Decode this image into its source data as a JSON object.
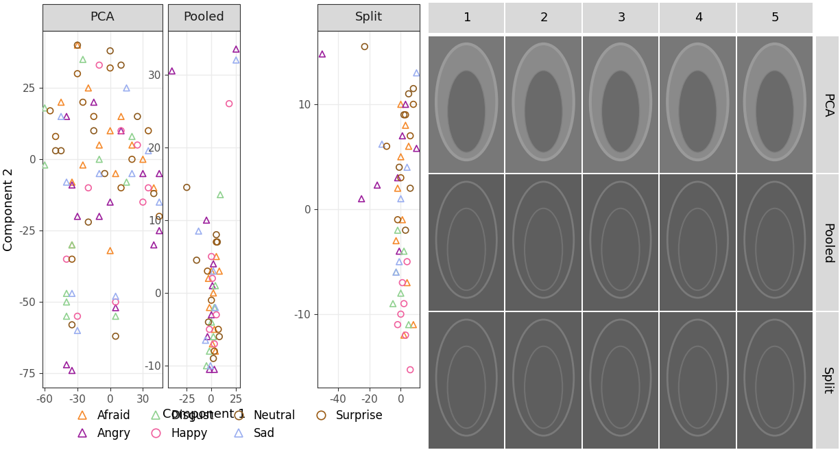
{
  "chart_data": [
    {
      "type": "scatter",
      "title": "PCA",
      "y_label": "Component 2",
      "legend": "lower center",
      "grid": true,
      "xlim": [
        -62,
        48
      ],
      "xticks": [
        -60,
        -30,
        0,
        30
      ],
      "ylim": [
        -80,
        45
      ],
      "yticks": [
        -75,
        -50,
        -25,
        0,
        25
      ],
      "series": [
        {
          "name": "Afraid",
          "color": "#f58a2c",
          "marker": "triangle",
          "x": [
            -30,
            -45,
            -20,
            0,
            10,
            20,
            30,
            -35,
            -35,
            0,
            5,
            -10,
            40,
            -25
          ],
          "y": [
            40,
            20,
            25,
            10,
            15,
            5,
            0,
            -8,
            -30,
            -32,
            -5,
            5,
            -10,
            -2
          ]
        },
        {
          "name": "Angry",
          "color": "#9c1f9c",
          "marker": "triangle",
          "x": [
            -40,
            -35,
            -30,
            -10,
            5,
            40,
            45,
            -40,
            10,
            30,
            -15,
            0,
            45,
            -35
          ],
          "y": [
            -72,
            -74,
            -20,
            -20,
            -52,
            -30,
            -25,
            15,
            10,
            -5,
            20,
            -15,
            -5,
            -9
          ]
        },
        {
          "name": "Disgust",
          "color": "#8fd18f",
          "marker": "triangle",
          "x": [
            -60,
            -60,
            -40,
            -40,
            -35,
            5,
            -10,
            15,
            -25,
            20,
            -40
          ],
          "y": [
            18,
            -2,
            -50,
            -55,
            -30,
            -55,
            0,
            -8,
            35,
            8,
            -47
          ]
        },
        {
          "name": "Happy",
          "color": "#f0609e",
          "marker": "circle",
          "x": [
            -10,
            30,
            5,
            -20,
            10,
            -30,
            25,
            35,
            -40
          ],
          "y": [
            33,
            -15,
            -50,
            -10,
            10,
            -55,
            5,
            -10,
            -35
          ]
        },
        {
          "name": "Neutral",
          "color": "#8c5a1e",
          "marker": "circle",
          "x": [
            -30,
            0,
            5,
            -35,
            -50,
            -45,
            10,
            25,
            -20,
            40,
            -15,
            -5
          ],
          "y": [
            40,
            38,
            -62,
            -58,
            3,
            3,
            33,
            15,
            -22,
            -12,
            10,
            -5
          ]
        },
        {
          "name": "Sad",
          "color": "#9aaef0",
          "marker": "triangle",
          "x": [
            -35,
            -30,
            5,
            -40,
            45,
            -10,
            15,
            35,
            -45,
            20
          ],
          "y": [
            -47,
            -60,
            -48,
            -8,
            -15,
            -5,
            25,
            3,
            15,
            -5
          ]
        },
        {
          "name": "Surprise",
          "color": "#9a5b14",
          "marker": "circle",
          "x": [
            -55,
            -50,
            -35,
            -15,
            45,
            0,
            -25,
            20,
            10,
            -30,
            35
          ],
          "y": [
            17,
            8,
            -35,
            15,
            -20,
            32,
            20,
            0,
            -10,
            30,
            10
          ]
        }
      ]
    },
    {
      "type": "scatter",
      "title": "Pooled",
      "x_label": "Component 1",
      "grid": true,
      "xlim": [
        -44,
        29
      ],
      "xticks": [
        -25,
        0,
        25
      ],
      "ylim": [
        -13,
        36
      ],
      "yticks": [
        -10,
        0,
        10,
        20,
        30
      ],
      "series": [
        {
          "name": "Afraid",
          "color": "#f58a2c",
          "marker": "triangle",
          "x": [
            0,
            2,
            -2,
            3,
            5,
            8,
            1,
            -3,
            4
          ],
          "y": [
            3,
            0,
            -2,
            -5,
            5,
            3,
            -7,
            2,
            -8
          ]
        },
        {
          "name": "Angry",
          "color": "#9c1f9c",
          "marker": "triangle",
          "x": [
            -40,
            25,
            -5,
            -2,
            0,
            2,
            -4,
            3,
            1
          ],
          "y": [
            30.5,
            33.5,
            10,
            -10.5,
            -3,
            4,
            -6,
            -10.5,
            1
          ]
        },
        {
          "name": "Disgust",
          "color": "#8fd18f",
          "marker": "triangle",
          "x": [
            9,
            -5,
            0,
            3,
            -2,
            4,
            2
          ],
          "y": [
            13.5,
            -10,
            -4,
            -2,
            -8,
            1,
            -6
          ]
        },
        {
          "name": "Happy",
          "color": "#f0609e",
          "marker": "circle",
          "x": [
            18,
            0,
            3,
            -2,
            5,
            1
          ],
          "y": [
            26,
            5,
            -7,
            -5,
            -3,
            2
          ]
        },
        {
          "name": "Neutral",
          "color": "#8c5a1e",
          "marker": "circle",
          "x": [
            -25,
            -15,
            5,
            2,
            6,
            -3,
            8
          ],
          "y": [
            14.5,
            4.5,
            8,
            -9,
            7,
            -4,
            -6
          ]
        },
        {
          "name": "Sad",
          "color": "#9aaef0",
          "marker": "triangle",
          "x": [
            25,
            -13,
            -6,
            2,
            4,
            -1
          ],
          "y": [
            32,
            8.5,
            -6.5,
            3,
            -2,
            -10
          ]
        },
        {
          "name": "Surprise",
          "color": "#9a5b14",
          "marker": "circle",
          "x": [
            5,
            0,
            -4,
            3,
            7
          ],
          "y": [
            7,
            -1,
            3,
            -8,
            -5
          ]
        }
      ]
    },
    {
      "type": "scatter",
      "title": "Split",
      "grid": true,
      "xlim": [
        -53,
        12
      ],
      "xticks": [
        -40,
        -20,
        0
      ],
      "ylim": [
        -17,
        17
      ],
      "yticks": [
        -10,
        0,
        10
      ],
      "series": [
        {
          "name": "Afraid",
          "color": "#f58a2c",
          "marker": "triangle",
          "x": [
            0,
            3,
            -2,
            1,
            5,
            -3,
            8,
            2,
            4,
            0
          ],
          "y": [
            5,
            8,
            2,
            -1,
            6,
            -3,
            -11,
            -12,
            -7,
            10
          ]
        },
        {
          "name": "Angry",
          "color": "#9c1f9c",
          "marker": "triangle",
          "x": [
            -50,
            -25,
            -15,
            10,
            -2,
            1,
            -1,
            3
          ],
          "y": [
            14.8,
            1,
            2.3,
            5.8,
            3,
            7,
            -4,
            10
          ]
        },
        {
          "name": "Disgust",
          "color": "#8fd18f",
          "marker": "triangle",
          "x": [
            -3,
            0,
            -5,
            5,
            2,
            -2
          ],
          "y": [
            -6,
            -8,
            -9,
            -11,
            -4,
            -2
          ]
        },
        {
          "name": "Happy",
          "color": "#f0609e",
          "marker": "circle",
          "x": [
            0,
            3,
            6,
            -2,
            1,
            4,
            2
          ],
          "y": [
            -10,
            -12,
            -15.3,
            -11,
            -7,
            -5,
            -9
          ]
        },
        {
          "name": "Neutral",
          "color": "#8c5a1e",
          "marker": "circle",
          "x": [
            -23,
            5,
            8,
            2,
            -1,
            3,
            6
          ],
          "y": [
            15.5,
            11,
            11.5,
            9,
            4,
            -2,
            2
          ]
        },
        {
          "name": "Sad",
          "color": "#9aaef0",
          "marker": "triangle",
          "x": [
            -12,
            10,
            -3,
            0,
            4,
            -1
          ],
          "y": [
            6.2,
            13,
            -6,
            1,
            4,
            -5
          ]
        },
        {
          "name": "Surprise",
          "color": "#9a5b14",
          "marker": "circle",
          "x": [
            -9,
            3,
            6,
            0,
            -2,
            8
          ],
          "y": [
            6,
            9,
            7,
            3,
            -1,
            10
          ]
        }
      ]
    }
  ],
  "image_grid": {
    "column_labels": [
      "1",
      "2",
      "3",
      "4",
      "5"
    ],
    "row_labels": [
      "PCA",
      "Pooled",
      "Split"
    ]
  }
}
